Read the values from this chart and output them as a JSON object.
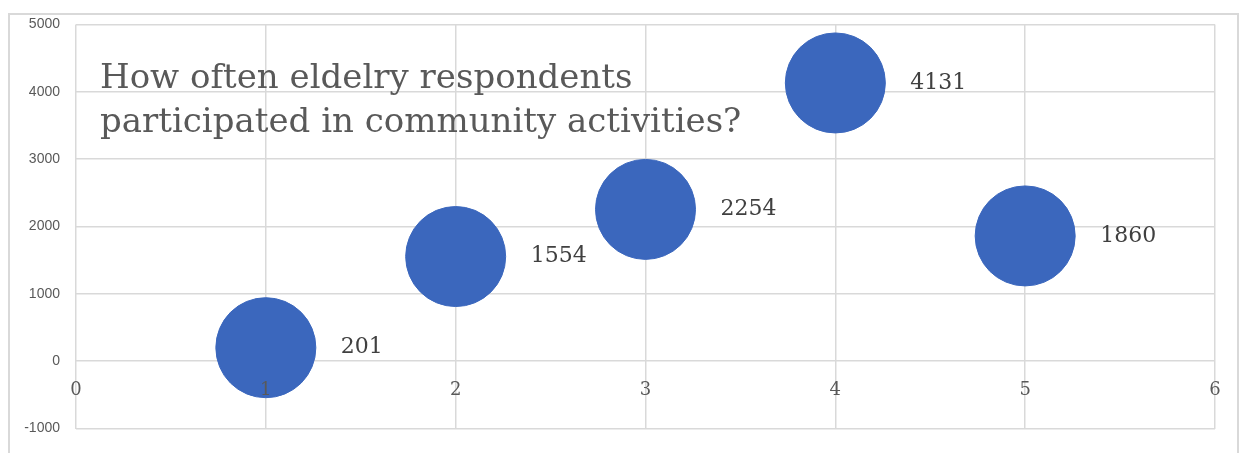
{
  "chart_data": {
    "type": "bubble",
    "title": "How often eldelry respondents participated in community activities?",
    "x": [
      1,
      2,
      3,
      4,
      5
    ],
    "values": [
      201,
      1554,
      2254,
      4131,
      1860
    ],
    "sizes": [
      1,
      1,
      1,
      1,
      1
    ],
    "color": "#3b67bd",
    "xlim": [
      0,
      6
    ],
    "xticks": [
      0,
      1,
      2,
      3,
      4,
      5,
      6
    ],
    "ylim": [
      -1000,
      5000
    ],
    "yticks": [
      -1000,
      0,
      1000,
      2000,
      3000,
      4000,
      5000
    ],
    "grid": true,
    "data_labels": true
  }
}
